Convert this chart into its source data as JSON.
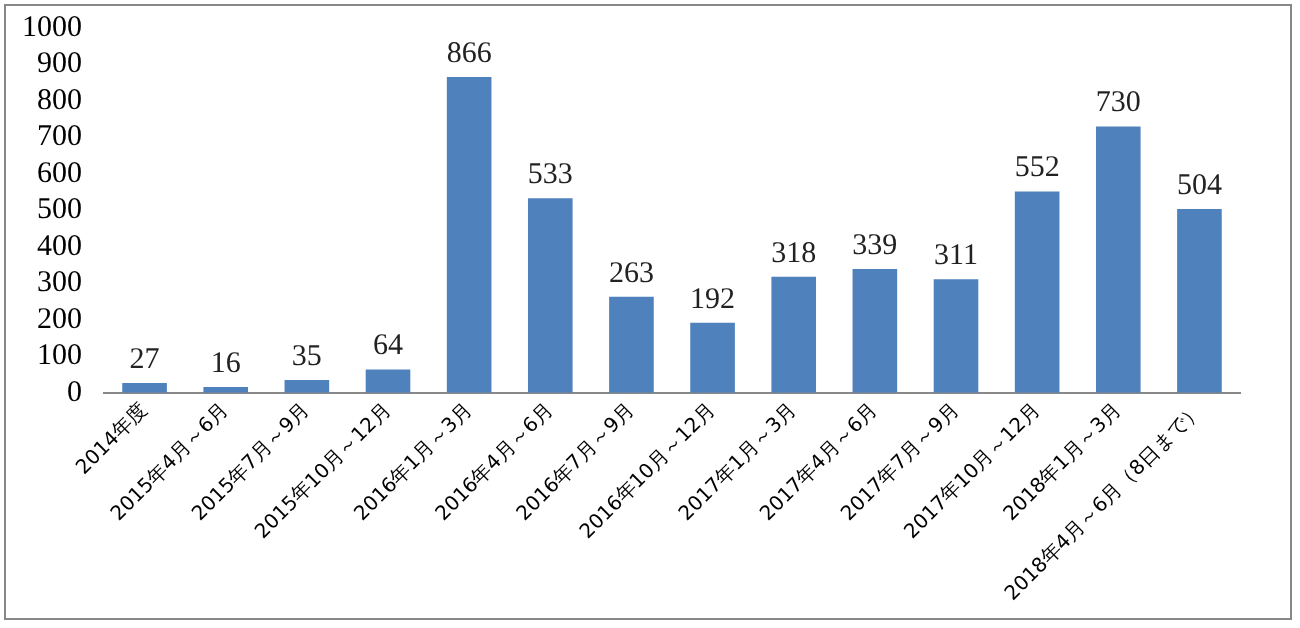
{
  "chart_data": {
    "type": "bar",
    "categories": [
      "2014年度",
      "2015年4月～6月",
      "2015年7月～9月",
      "2015年10月～12月",
      "2016年1月～3月",
      "2016年4月～6月",
      "2016年7月～9月",
      "2016年10月～12月",
      "2017年1月～3月",
      "2017年4月～6月",
      "2017年7月～9月",
      "2017年10月～12月",
      "2018年1月～3月",
      "2018年4月～6月（8日まで）"
    ],
    "values": [
      27,
      16,
      35,
      64,
      866,
      533,
      263,
      192,
      318,
      339,
      311,
      552,
      730,
      504
    ],
    "color": "#4f81bd",
    "ylim": [
      0,
      1000
    ],
    "yticks": [
      0,
      100,
      200,
      300,
      400,
      500,
      600,
      700,
      800,
      900,
      1000
    ],
    "grid": false,
    "legend": false,
    "data_labels": true
  }
}
